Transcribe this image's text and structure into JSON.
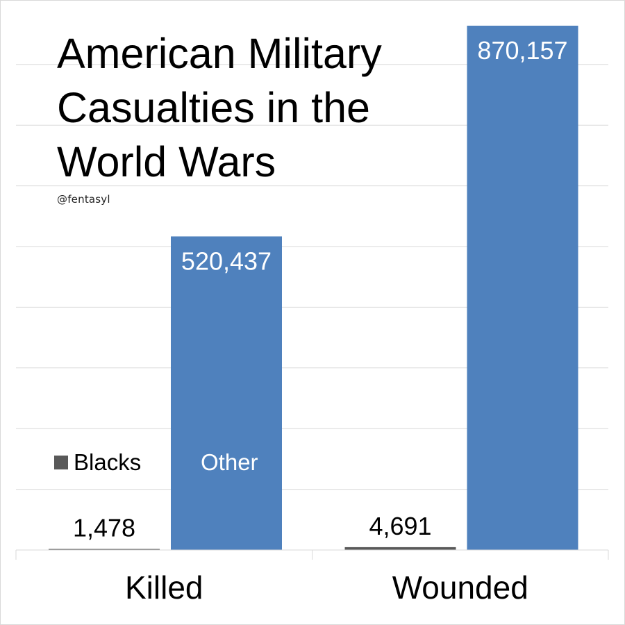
{
  "chart_data": {
    "type": "bar",
    "title_lines": [
      "American Military",
      "Casualties in the",
      "World Wars"
    ],
    "credit": "@fentasyl",
    "categories": [
      "Killed",
      "Wounded"
    ],
    "series": [
      {
        "name": "Blacks",
        "values": [
          1478,
          4691
        ],
        "labels": [
          "1,478",
          "4,691"
        ],
        "color": "#595959"
      },
      {
        "name": "Other",
        "values": [
          520437,
          870157
        ],
        "labels": [
          "520,437",
          "870,157"
        ],
        "color": "#4f81bd"
      }
    ],
    "ylim": [
      0,
      870157
    ],
    "grid": true,
    "legend": "inside-left"
  }
}
